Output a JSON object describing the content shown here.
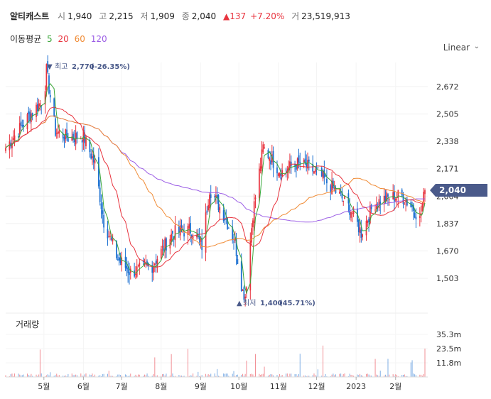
{
  "header": {
    "name": "알티캐스트",
    "open_label": "시",
    "open": "1,940",
    "high_label": "고",
    "high": "2,215",
    "low_label": "저",
    "low": "1,909",
    "close_label": "종",
    "close": "2,040",
    "change": "▲137",
    "change_pct": "+7.20%",
    "volume_label": "거",
    "volume": "23,519,913"
  },
  "ma_legend": {
    "title": "이동평균",
    "items": [
      {
        "label": "5",
        "color": "#3aa63a"
      },
      {
        "label": "20",
        "color": "#e8343f"
      },
      {
        "label": "60",
        "color": "#f08a33"
      },
      {
        "label": "120",
        "color": "#9b5de5"
      }
    ]
  },
  "scale_mode": "Linear",
  "price_axis": {
    "ticks": [
      "2,672",
      "2,505",
      "2,338",
      "2,171",
      "2,004",
      "1,837",
      "1,670",
      "1,503"
    ]
  },
  "current_price_tag": "2,040",
  "max_marker": {
    "label": "최고",
    "value": "2,770",
    "pct": "(-26.35%)"
  },
  "min_marker": {
    "label": "최저",
    "value": "1,400",
    "pct": "(45.71%)"
  },
  "volume_panel": {
    "title": "거래량",
    "ticks": [
      "35.3m",
      "23.5m",
      "11.8m"
    ]
  },
  "x_axis": {
    "labels": [
      "5월",
      "6월",
      "7월",
      "8월",
      "9월",
      "10월",
      "11월",
      "12월",
      "2023",
      "2월"
    ]
  },
  "colors": {
    "up": "#e8343f",
    "down": "#1a6fd1",
    "ma5": "#3aa63a",
    "ma20": "#e8343f",
    "ma60": "#f08a33",
    "ma120": "#9b5de5",
    "tag": "#4a5a8a"
  },
  "chart_data": {
    "type": "candlestick",
    "ylim": [
      1400,
      2800
    ],
    "key_points": [
      {
        "date": "2022-04-01",
        "close": 2300
      },
      {
        "date": "2022-04-20",
        "close": 2500
      },
      {
        "date": "2022-05-01",
        "close": 2600
      },
      {
        "date": "2022-05-03",
        "close": 2770
      },
      {
        "date": "2022-05-10",
        "close": 2400
      },
      {
        "date": "2022-05-20",
        "close": 2360
      },
      {
        "date": "2022-06-01",
        "close": 2370
      },
      {
        "date": "2022-06-10",
        "close": 2200
      },
      {
        "date": "2022-06-17",
        "close": 1850
      },
      {
        "date": "2022-06-28",
        "close": 1620
      },
      {
        "date": "2022-07-08",
        "close": 1540
      },
      {
        "date": "2022-07-25",
        "close": 1580
      },
      {
        "date": "2022-08-10",
        "close": 1780
      },
      {
        "date": "2022-08-25",
        "close": 1800
      },
      {
        "date": "2022-09-02",
        "close": 1700
      },
      {
        "date": "2022-09-08",
        "close": 2050
      },
      {
        "date": "2022-09-20",
        "close": 1880
      },
      {
        "date": "2022-09-28",
        "close": 1720
      },
      {
        "date": "2022-10-04",
        "close": 1420
      },
      {
        "date": "2022-10-06",
        "close": 1400
      },
      {
        "date": "2022-10-12",
        "close": 1900
      },
      {
        "date": "2022-10-20",
        "close": 2300
      },
      {
        "date": "2022-11-03",
        "close": 2150
      },
      {
        "date": "2022-11-15",
        "close": 2200
      },
      {
        "date": "2022-11-25",
        "close": 2180
      },
      {
        "date": "2022-12-05",
        "close": 2120
      },
      {
        "date": "2022-12-20",
        "close": 2000
      },
      {
        "date": "2022-12-28",
        "close": 1920
      },
      {
        "date": "2023-01-05",
        "close": 1780
      },
      {
        "date": "2023-01-15",
        "close": 1960
      },
      {
        "date": "2023-01-25",
        "close": 1990
      },
      {
        "date": "2023-02-05",
        "close": 2010
      },
      {
        "date": "2023-02-15",
        "close": 1930
      },
      {
        "date": "2023-02-20",
        "close": 1860
      },
      {
        "date": "2023-02-24",
        "close": 2040
      }
    ]
  }
}
